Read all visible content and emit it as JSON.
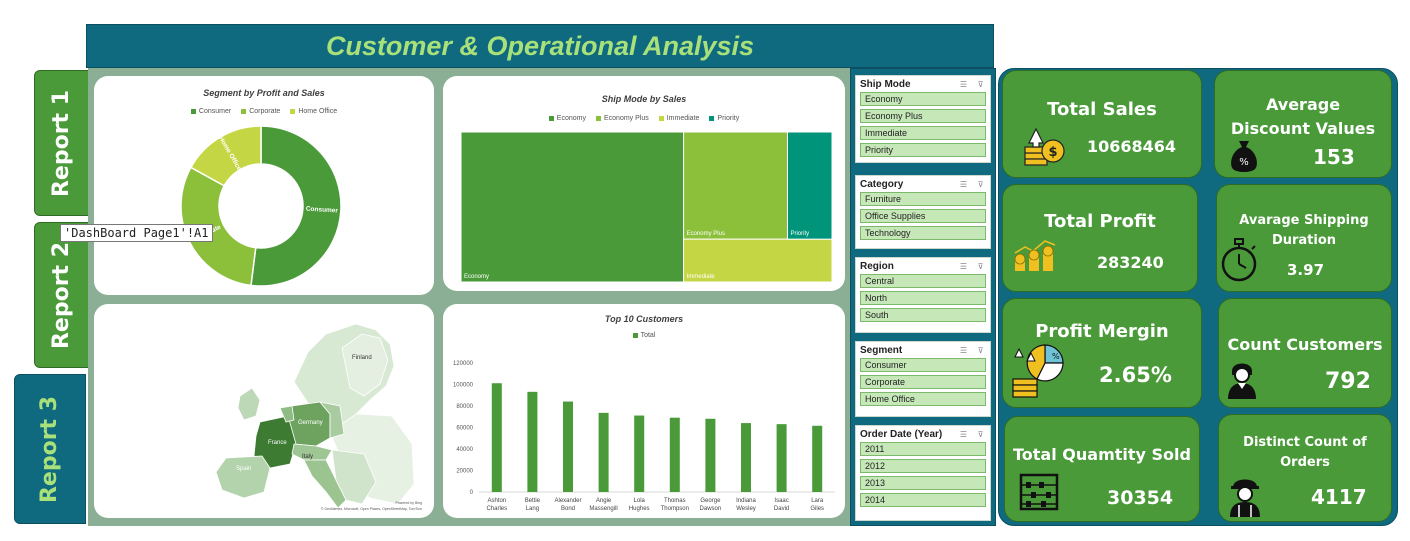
{
  "title": "Customer & Operational Analysis",
  "tabs": [
    "Report 1",
    "Report 2",
    "Report 3"
  ],
  "tooltip": "'DashBoard Page1'!A1",
  "slicers": [
    {
      "label": "Ship Mode",
      "items": [
        "Economy",
        "Economy Plus",
        "Immediate",
        "Priority"
      ]
    },
    {
      "label": "Category",
      "items": [
        "Furniture",
        "Office Supplies",
        "Technology"
      ]
    },
    {
      "label": "Region",
      "items": [
        "Central",
        "North",
        "South"
      ]
    },
    {
      "label": "Segment",
      "items": [
        "Consumer",
        "Corporate",
        "Home Office"
      ]
    },
    {
      "label": "Order Date (Year)",
      "items": [
        "2011",
        "2012",
        "2013",
        "2014"
      ]
    }
  ],
  "kpis": {
    "total_sales": {
      "title": "Total Sales",
      "value": "10668464"
    },
    "avg_discount": {
      "title": "Average Discount Values",
      "value": "153"
    },
    "total_profit": {
      "title": "Total Profit",
      "value": "283240"
    },
    "avg_shipping": {
      "title": "Avarage Shipping Duration",
      "value": "3.97"
    },
    "profit_margin": {
      "title": "Profit Mergin",
      "value": "2.65%"
    },
    "count_customers": {
      "title": "Count Customers",
      "value": "792"
    },
    "total_qty": {
      "title": "Total Quamtity Sold",
      "value": "30354"
    },
    "distinct_orders": {
      "title": "Distinct Count of Orders",
      "value": "4117"
    }
  },
  "map": {
    "labels": [
      "Finland",
      "Germany",
      "France",
      "Italy",
      "Spain"
    ],
    "credit_1": "Powered by Bing",
    "credit_2": "© GeoNames, Microsoft, Open Places, OpenStreetMap, TomTom"
  },
  "colors": {
    "accent": "#4a9a3a",
    "teal": "#0f6a80",
    "light_green": "#a8e07a"
  },
  "chart_data": [
    {
      "type": "pie",
      "title": "Segment by Profit and Sales",
      "categories": [
        "Consumer",
        "Corporate",
        "Home Office"
      ],
      "values": [
        52,
        31,
        17
      ],
      "colors": [
        "#4a9a3a",
        "#8cbf3a",
        "#c5d645"
      ],
      "donut": true
    },
    {
      "type": "heatmap",
      "subtype": "treemap",
      "title": "Ship Mode by Sales",
      "categories": [
        "Economy",
        "Economy Plus",
        "Immediate",
        "Priority"
      ],
      "values": [
        60,
        20,
        8,
        12
      ],
      "colors": [
        "#4a9a3a",
        "#8cbf3a",
        "#c5d645",
        "#00957a"
      ]
    },
    {
      "type": "bar",
      "title": "Top 10 Customers",
      "series": [
        {
          "name": "Total",
          "values": [
            101000,
            93000,
            84000,
            73500,
            71000,
            69000,
            68000,
            64000,
            63000,
            61500
          ]
        }
      ],
      "categories": [
        "Ashton Charles",
        "Bettie Lang",
        "Alexander Bond",
        "Angie Massengill",
        "Lola Hughes",
        "Thomas Thompson",
        "George Dawson",
        "Indiana Wesley",
        "Isaac David",
        "Lara Giles"
      ],
      "yticks": [
        "0",
        "20000",
        "40000",
        "60000",
        "80000",
        "100000",
        "120000"
      ],
      "ylim": [
        0,
        130000
      ]
    }
  ]
}
